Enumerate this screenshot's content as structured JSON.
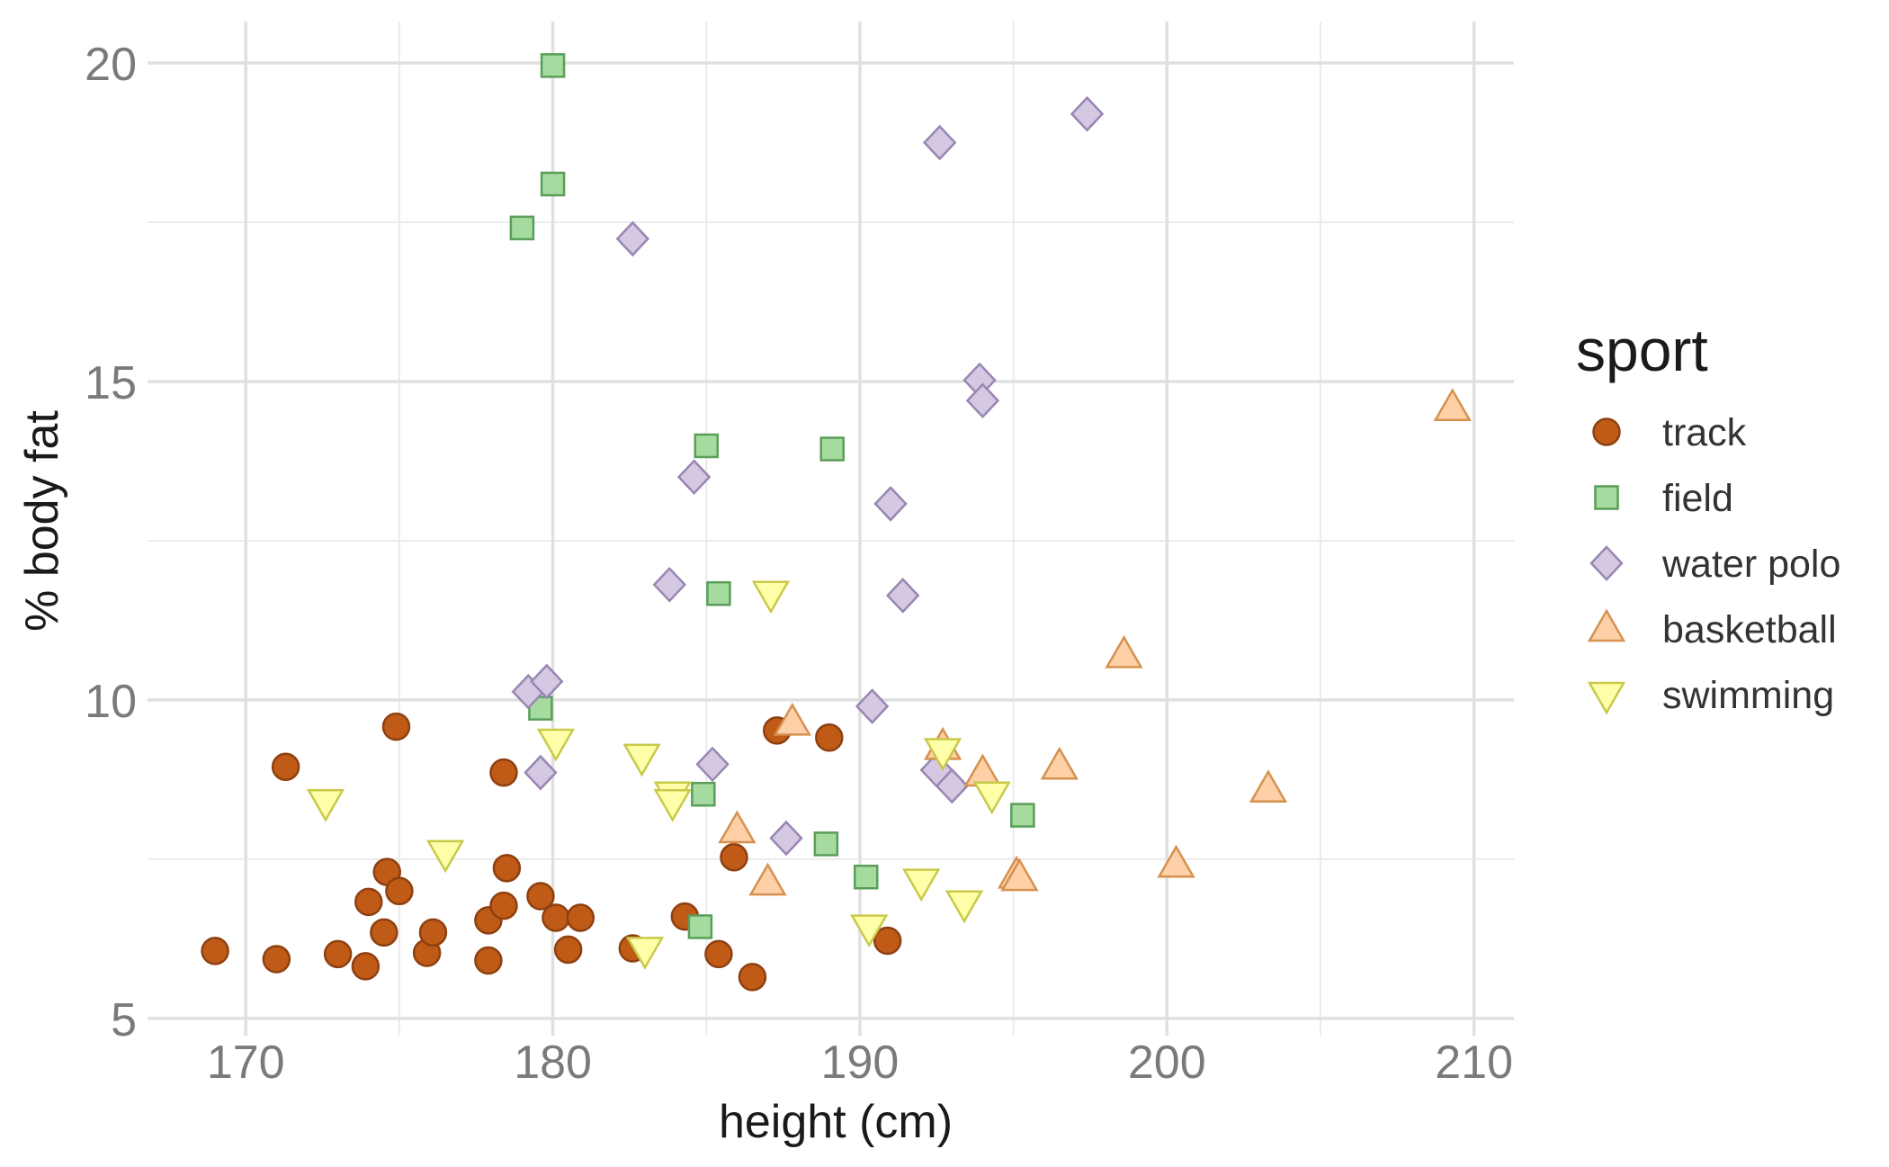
{
  "chart_data": {
    "type": "scatter",
    "xlabel": "height (cm)",
    "ylabel": "% body fat",
    "xlim": [
      166.8,
      211.3
    ],
    "ylim": [
      4.73,
      20.65
    ],
    "xticks": [
      170,
      180,
      190,
      200,
      210
    ],
    "yticks": [
      5,
      10,
      15,
      20
    ],
    "grid": true,
    "legend": {
      "title": "sport",
      "placement": "right"
    },
    "series": [
      {
        "name": "track",
        "shape": "circle",
        "fill": "#bf5b17",
        "stroke": "#8e4010",
        "points": [
          [
            169.0,
            6.06
          ],
          [
            171.0,
            5.93
          ],
          [
            173.0,
            6.01
          ],
          [
            173.9,
            5.82
          ],
          [
            171.3,
            8.95
          ],
          [
            174.9,
            9.58
          ],
          [
            174.0,
            6.83
          ],
          [
            174.6,
            7.3
          ],
          [
            174.5,
            6.35
          ],
          [
            175.0,
            7.0
          ],
          [
            175.9,
            6.03
          ],
          [
            176.1,
            6.35
          ],
          [
            177.9,
            6.54
          ],
          [
            177.9,
            5.91
          ],
          [
            178.4,
            8.86
          ],
          [
            178.5,
            7.36
          ],
          [
            178.4,
            6.77
          ],
          [
            179.6,
            6.92
          ],
          [
            180.1,
            6.58
          ],
          [
            180.9,
            6.58
          ],
          [
            180.5,
            6.08
          ],
          [
            182.6,
            6.1
          ],
          [
            184.3,
            6.6
          ],
          [
            185.4,
            6.01
          ],
          [
            185.9,
            7.53
          ],
          [
            186.5,
            5.65
          ],
          [
            187.3,
            9.52
          ],
          [
            189.0,
            9.41
          ],
          [
            190.9,
            6.22
          ]
        ]
      },
      {
        "name": "field",
        "shape": "square",
        "fill": "#a6dba0",
        "stroke": "#5a9e58",
        "points": [
          [
            180.0,
            19.96
          ],
          [
            180.0,
            18.1
          ],
          [
            179.0,
            17.41
          ],
          [
            185.0,
            13.99
          ],
          [
            189.1,
            13.94
          ],
          [
            185.4,
            11.67
          ],
          [
            179.6,
            9.87
          ],
          [
            184.9,
            8.52
          ],
          [
            195.3,
            8.19
          ],
          [
            188.9,
            7.74
          ],
          [
            190.2,
            7.22
          ],
          [
            184.8,
            6.44
          ]
        ]
      },
      {
        "name": "water polo",
        "shape": "diamond",
        "fill": "#d5c8e2",
        "stroke": "#9886b3",
        "points": [
          [
            197.4,
            19.2
          ],
          [
            192.6,
            18.75
          ],
          [
            182.6,
            17.24
          ],
          [
            193.9,
            15.02
          ],
          [
            194.0,
            14.7
          ],
          [
            184.6,
            13.5
          ],
          [
            191.0,
            13.08
          ],
          [
            183.8,
            11.81
          ],
          [
            191.4,
            11.64
          ],
          [
            179.2,
            10.13
          ],
          [
            179.8,
            10.29
          ],
          [
            190.4,
            9.9
          ],
          [
            179.6,
            8.86
          ],
          [
            185.2,
            8.99
          ],
          [
            192.5,
            8.9
          ],
          [
            193.0,
            8.65
          ],
          [
            187.6,
            7.83
          ]
        ]
      },
      {
        "name": "basketball",
        "shape": "triangle-up",
        "fill": "#fdd0a8",
        "stroke": "#d6914f",
        "points": [
          [
            209.3,
            14.58
          ],
          [
            198.6,
            10.7
          ],
          [
            187.8,
            9.64
          ],
          [
            192.7,
            9.26
          ],
          [
            194.0,
            8.84
          ],
          [
            196.5,
            8.95
          ],
          [
            203.3,
            8.59
          ],
          [
            186.0,
            7.95
          ],
          [
            187.0,
            7.13
          ],
          [
            195.1,
            7.24
          ],
          [
            195.2,
            7.2
          ],
          [
            200.3,
            7.41
          ]
        ]
      },
      {
        "name": "swimming",
        "shape": "triangle-down",
        "fill": "#ffffaa",
        "stroke": "#c9c94a",
        "points": [
          [
            172.6,
            8.4
          ],
          [
            176.5,
            7.6
          ],
          [
            180.1,
            9.35
          ],
          [
            182.9,
            9.11
          ],
          [
            183.9,
            8.52
          ],
          [
            183.9,
            8.4
          ],
          [
            187.1,
            11.67
          ],
          [
            192.7,
            9.2
          ],
          [
            194.3,
            8.52
          ],
          [
            192.0,
            7.15
          ],
          [
            193.4,
            6.81
          ],
          [
            190.3,
            6.43
          ],
          [
            183.0,
            6.08
          ]
        ]
      }
    ]
  }
}
